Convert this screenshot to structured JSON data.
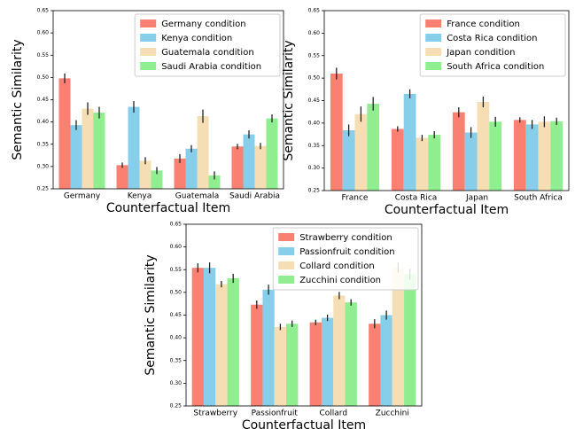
{
  "chart_data": [
    {
      "type": "bar",
      "xlabel": "Counterfactual Item",
      "ylabel": "Semantic Similarity",
      "categories": [
        "Germany",
        "Kenya",
        "Guatemala",
        "Saudi Arabia"
      ],
      "ylim": [
        0.25,
        0.65
      ],
      "yticks": [
        0.25,
        {
          "value": 0.3,
          "label": "0.30"
        },
        0.35,
        {
          "value": 0.4,
          "label": "0.40"
        },
        0.45,
        {
          "value": 0.5,
          "label": "0.50"
        },
        0.55,
        {
          "value": 0.6,
          "label": "0.60"
        },
        0.65
      ],
      "legend": "upper right",
      "series": [
        {
          "name": "Germany condition",
          "color": "#fa8072",
          "values": [
            0.498,
            0.303,
            0.318,
            0.345
          ],
          "errors": [
            0.011,
            0.006,
            0.01,
            0.006
          ]
        },
        {
          "name": "Kenya condition",
          "color": "#87ceeb",
          "values": [
            0.393,
            0.434,
            0.34,
            0.372
          ],
          "errors": [
            0.011,
            0.013,
            0.008,
            0.009
          ]
        },
        {
          "name": "Guatemala condition",
          "color": "#f5deb3",
          "values": [
            0.43,
            0.313,
            0.413,
            0.346
          ],
          "errors": [
            0.014,
            0.008,
            0.015,
            0.007
          ]
        },
        {
          "name": "Saudi Arabia condition",
          "color": "#90ee90",
          "values": [
            0.421,
            0.291,
            0.28,
            0.408
          ],
          "errors": [
            0.013,
            0.008,
            0.009,
            0.009
          ]
        }
      ]
    },
    {
      "type": "bar",
      "xlabel": "Counterfactual Item",
      "ylabel": "Semantic Similarity",
      "categories": [
        "France",
        "Costa Rica",
        "Japan",
        "South Africa"
      ],
      "ylim": [
        0.25,
        0.65
      ],
      "yticks": [
        0.25,
        {
          "value": 0.3,
          "label": "0.30"
        },
        0.35,
        {
          "value": 0.4,
          "label": "0.40"
        },
        0.45,
        {
          "value": 0.5,
          "label": "0.50"
        },
        0.55,
        {
          "value": 0.6,
          "label": "0.60"
        },
        0.65
      ],
      "legend": "upper right",
      "series": [
        {
          "name": "France condition",
          "color": "#fa8072",
          "values": [
            0.51,
            0.387,
            0.424,
            0.407
          ],
          "errors": [
            0.013,
            0.006,
            0.011,
            0.006
          ]
        },
        {
          "name": "Costa Rica condition",
          "color": "#87ceeb",
          "values": [
            0.384,
            0.465,
            0.379,
            0.397
          ],
          "errors": [
            0.013,
            0.01,
            0.012,
            0.01
          ]
        },
        {
          "name": "Japan condition",
          "color": "#f5deb3",
          "values": [
            0.42,
            0.367,
            0.447,
            0.403
          ],
          "errors": [
            0.017,
            0.007,
            0.012,
            0.012
          ]
        },
        {
          "name": "South Africa condition",
          "color": "#90ee90",
          "values": [
            0.443,
            0.374,
            0.403,
            0.404
          ],
          "errors": [
            0.015,
            0.008,
            0.011,
            0.008
          ]
        }
      ]
    },
    {
      "type": "bar",
      "xlabel": "Counterfactual Item",
      "ylabel": "Semantic Similarity",
      "categories": [
        "Strawberry",
        "Passionfruit",
        "Collard",
        "Zucchini"
      ],
      "ylim": [
        0.25,
        0.65
      ],
      "yticks": [
        0.25,
        {
          "value": 0.3,
          "label": "0.30"
        },
        0.35,
        {
          "value": 0.4,
          "label": "0.40"
        },
        0.45,
        {
          "value": 0.5,
          "label": "0.50"
        },
        0.55,
        {
          "value": 0.6,
          "label": "0.60"
        },
        0.65
      ],
      "legend": "upper right",
      "series": [
        {
          "name": "Strawberry condition",
          "color": "#fa8072",
          "values": [
            0.554,
            0.473,
            0.434,
            0.431
          ],
          "errors": [
            0.01,
            0.009,
            0.006,
            0.01
          ]
        },
        {
          "name": "Passionfruit condition",
          "color": "#87ceeb",
          "values": [
            0.554,
            0.506,
            0.444,
            0.45
          ],
          "errors": [
            0.012,
            0.011,
            0.007,
            0.01
          ]
        },
        {
          "name": "Collard condition",
          "color": "#f5deb3",
          "values": [
            0.518,
            0.424,
            0.493,
            0.555
          ],
          "errors": [
            0.007,
            0.007,
            0.008,
            0.011
          ]
        },
        {
          "name": "Zucchini condition",
          "color": "#90ee90",
          "values": [
            0.531,
            0.431,
            0.478,
            0.54
          ],
          "errors": [
            0.01,
            0.007,
            0.007,
            0.012
          ]
        }
      ]
    }
  ]
}
